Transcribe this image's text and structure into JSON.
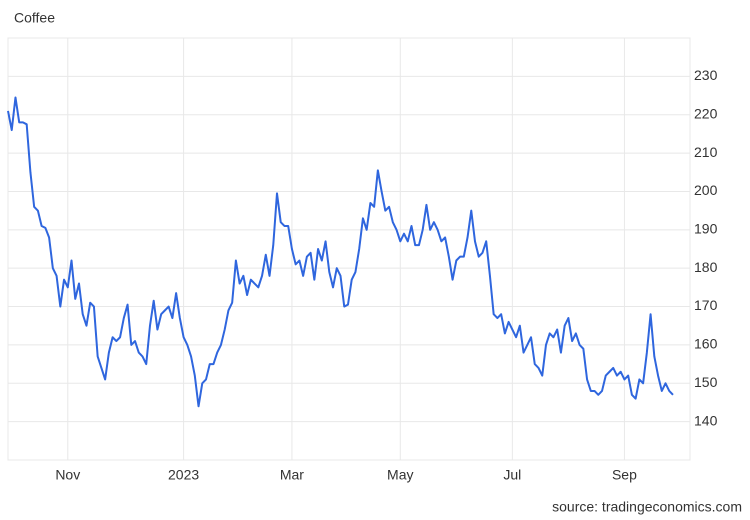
{
  "chart_data": {
    "type": "line",
    "title": "Coffee",
    "source": "source: tradingeconomics.com",
    "categories": [
      null,
      null,
      null,
      null,
      null,
      null,
      null,
      null,
      null,
      null,
      null,
      null,
      null,
      null,
      null,
      null,
      "Nov",
      null,
      null,
      null,
      null,
      null,
      null,
      null,
      null,
      null,
      null,
      null,
      null,
      null,
      null,
      null,
      null,
      null,
      null,
      null,
      null,
      null,
      null,
      null,
      null,
      null,
      null,
      null,
      null,
      null,
      null,
      "2023",
      null,
      null,
      null,
      null,
      null,
      null,
      null,
      null,
      null,
      null,
      null,
      null,
      null,
      null,
      null,
      null,
      null,
      null,
      null,
      null,
      null,
      null,
      null,
      null,
      null,
      null,
      null,
      null,
      "Mar",
      null,
      null,
      null,
      null,
      null,
      null,
      null,
      null,
      null,
      null,
      null,
      null,
      null,
      null,
      null,
      null,
      null,
      null,
      null,
      null,
      null,
      null,
      null,
      null,
      null,
      null,
      null,
      null,
      "May",
      null,
      null,
      null,
      null,
      null,
      null,
      null,
      null,
      null,
      null,
      null,
      null,
      null,
      null,
      null,
      null,
      null,
      null,
      null,
      null,
      null,
      null,
      null,
      null,
      null,
      null,
      null,
      null,
      null,
      "Jul",
      null,
      null,
      null,
      null,
      null,
      null,
      null,
      null,
      null,
      null,
      null,
      null,
      null,
      null,
      null,
      null,
      null,
      null,
      null,
      null,
      null,
      null,
      null,
      null,
      null,
      null,
      null,
      null,
      null,
      "Sep",
      null,
      null,
      null,
      null,
      null,
      null,
      null,
      null,
      null,
      null,
      null,
      null,
      null
    ],
    "series": [
      {
        "name": "Coffee",
        "color": "#2f66de",
        "values": [
          221,
          216,
          224.5,
          218,
          218,
          217.5,
          205,
          196,
          195,
          191,
          190.5,
          188,
          180,
          178,
          170,
          177,
          175,
          182,
          172,
          176,
          168,
          165,
          171,
          170,
          157,
          154,
          151,
          158,
          162,
          161,
          162,
          167,
          170.5,
          160,
          161,
          158,
          157,
          155,
          165,
          171.5,
          164,
          168,
          169,
          170,
          167,
          173.5,
          167,
          162,
          160,
          157,
          152,
          144,
          150,
          151,
          155,
          155,
          158,
          160,
          164,
          169,
          171,
          182,
          176,
          178,
          173,
          177,
          176,
          175,
          178,
          183.5,
          178,
          186,
          199.5,
          192,
          191,
          191,
          185,
          181,
          182,
          178,
          183,
          184,
          177,
          185,
          182,
          187,
          179,
          175,
          180,
          178,
          170,
          170.5,
          177,
          179,
          185,
          193,
          190,
          197,
          196,
          205.5,
          200,
          195,
          196,
          192,
          190,
          187,
          189,
          187,
          191,
          186,
          186,
          190,
          196.5,
          190,
          192,
          190,
          187,
          188,
          183,
          177,
          182,
          183,
          183,
          188,
          195,
          187,
          183,
          184,
          187,
          178,
          168,
          167,
          168,
          163,
          166,
          164,
          162,
          165,
          158,
          160,
          162,
          155,
          154,
          152,
          160,
          163,
          162,
          164,
          158,
          165,
          167,
          161,
          163,
          160,
          159,
          151,
          148,
          148,
          147,
          148,
          152,
          153,
          154,
          152,
          153,
          151,
          152,
          147,
          146,
          151,
          150,
          158,
          168,
          157,
          152,
          148,
          150,
          148,
          147
        ]
      }
    ],
    "ylim": [
      130,
      240
    ],
    "yticks": [
      140,
      150,
      160,
      170,
      180,
      190,
      200,
      210,
      220,
      230
    ],
    "grid": true
  }
}
